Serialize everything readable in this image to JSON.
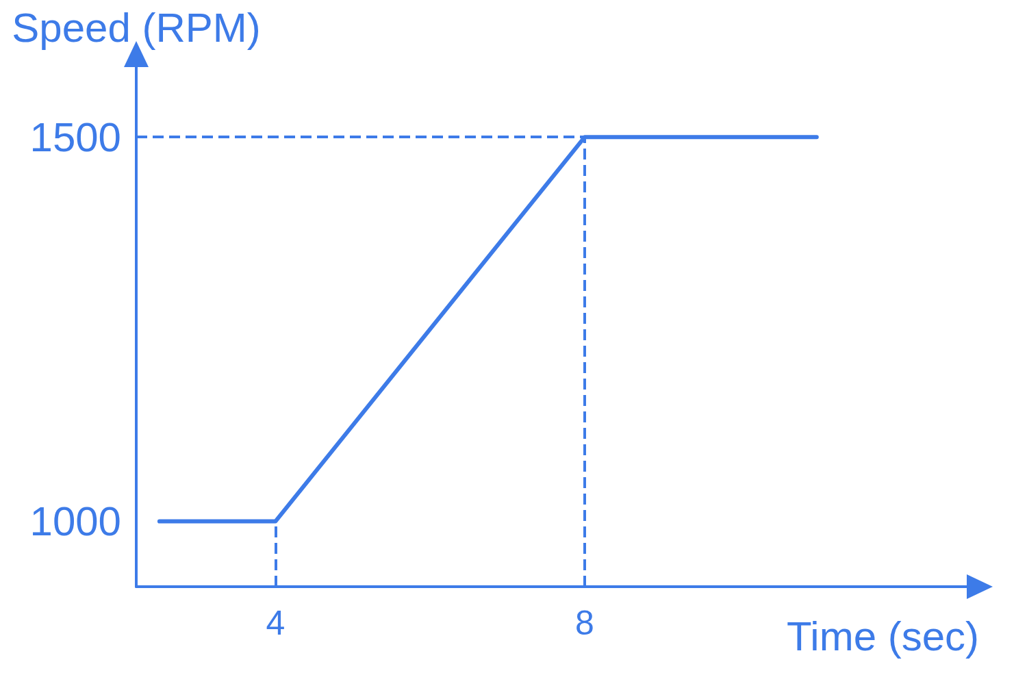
{
  "chart_data": {
    "type": "line",
    "xlabel": "Time (sec)",
    "ylabel": "Speed (RPM)",
    "x": [
      2.5,
      4,
      8,
      11
    ],
    "series": [
      {
        "color": "#3d7be8",
        "values": [
          1000,
          1000,
          1500,
          1500
        ]
      }
    ],
    "xlim": [
      2.2,
      13.1
    ],
    "ylim": [
      915,
      1607
    ],
    "xticks": [
      4,
      8
    ],
    "yticks": [
      1000,
      1500
    ],
    "grid": false,
    "marker": "none",
    "line_style": "solid",
    "ref_lines": [
      {
        "axis": "y",
        "value": 1500,
        "color": "#3d7be8",
        "line_style": "dashed"
      },
      {
        "axis": "x",
        "value": 4,
        "color": "#3d7be8",
        "line_style": "dashed"
      },
      {
        "axis": "x",
        "value": 8,
        "color": "#3d7be8",
        "line_style": "dashed"
      }
    ]
  }
}
